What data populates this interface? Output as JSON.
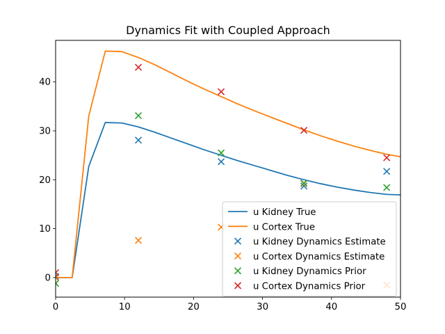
{
  "chart_data": {
    "type": "line",
    "title": "Dynamics Fit with Coupled Approach",
    "xlabel": "",
    "ylabel": "",
    "xlim": [
      0,
      50
    ],
    "ylim": [
      -4,
      48.5
    ],
    "xticks": [
      0,
      10,
      20,
      30,
      40,
      50
    ],
    "yticks": [
      0,
      10,
      20,
      30,
      40
    ],
    "grid": false,
    "legend_position": "lower-right",
    "series": [
      {
        "name": "u Kidney True",
        "kind": "line",
        "color": "#1f77b4",
        "x": [
          0,
          2.4,
          4.8,
          7.2,
          9.6,
          12,
          14.4,
          16.8,
          19.2,
          21.6,
          24,
          26.4,
          28.8,
          31.2,
          33.6,
          36,
          38.4,
          40.8,
          43.2,
          45.6,
          48,
          50
        ],
        "y": [
          0,
          0,
          22.7,
          31.7,
          31.6,
          30.8,
          29.7,
          28.5,
          27.3,
          26.1,
          25.0,
          23.9,
          22.9,
          21.9,
          20.9,
          20.0,
          19.2,
          18.5,
          17.9,
          17.4,
          17.0,
          16.9
        ]
      },
      {
        "name": "u Cortex True",
        "kind": "line",
        "color": "#ff7f0e",
        "x": [
          0,
          2.4,
          4.8,
          7.2,
          9.6,
          12,
          14.4,
          16.8,
          19.2,
          21.6,
          24,
          26.4,
          28.8,
          31.2,
          33.6,
          36,
          38.4,
          40.8,
          43.2,
          45.6,
          48,
          50
        ],
        "y": [
          0,
          0,
          33.0,
          46.3,
          46.2,
          45.0,
          43.5,
          41.8,
          40.1,
          38.5,
          37.0,
          35.5,
          34.1,
          32.8,
          31.5,
          30.2,
          29.0,
          27.9,
          26.9,
          26.0,
          25.2,
          24.7
        ]
      },
      {
        "name": "u Kidney Dynamics Estimate",
        "kind": "scatter",
        "color": "#1f77b4",
        "x": [
          0,
          12,
          24,
          36,
          48
        ],
        "y": [
          0.2,
          28.1,
          23.7,
          18.7,
          21.7
        ]
      },
      {
        "name": "u Cortex Dynamics Estimate",
        "kind": "scatter",
        "color": "#ff7f0e",
        "x": [
          0,
          12,
          24,
          36,
          48
        ],
        "y": [
          0.0,
          7.6,
          10.3,
          19.2,
          -1.5
        ]
      },
      {
        "name": "u Kidney Dynamics Prior",
        "kind": "scatter",
        "color": "#2ca02c",
        "x": [
          0,
          12,
          24,
          36,
          48
        ],
        "y": [
          -1.2,
          33.1,
          25.5,
          19.3,
          18.4
        ]
      },
      {
        "name": "u Cortex Dynamics Prior",
        "kind": "scatter",
        "color": "#d62728",
        "x": [
          0,
          12,
          24,
          36,
          48
        ],
        "y": [
          1.0,
          43.0,
          38.0,
          30.1,
          24.5
        ]
      }
    ]
  }
}
